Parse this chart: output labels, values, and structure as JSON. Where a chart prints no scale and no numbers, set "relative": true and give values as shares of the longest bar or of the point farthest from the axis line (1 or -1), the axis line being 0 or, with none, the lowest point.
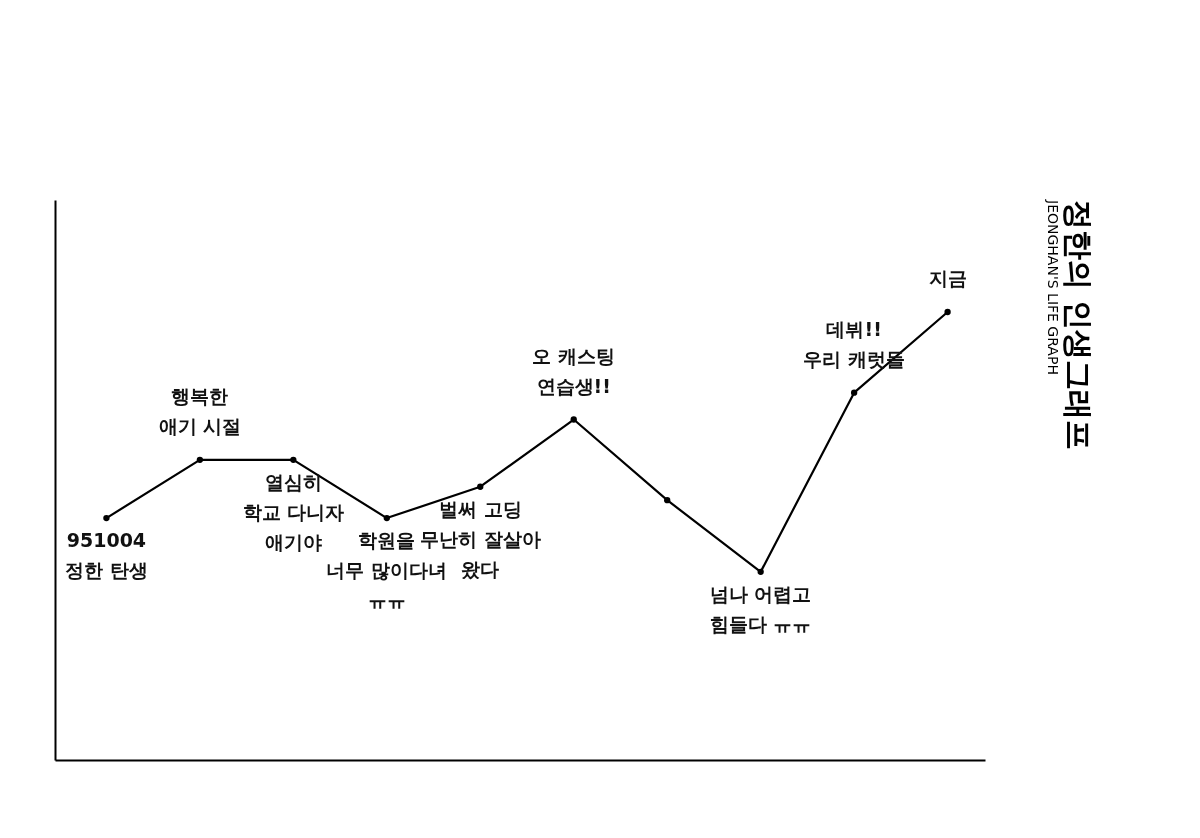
{
  "chart_data": {
    "type": "line",
    "title": "정한의 인생그래프",
    "subtitle": "JEONGHAN'S LIFE GRAPH",
    "relative": true,
    "categories": [
      null,
      null,
      null,
      null,
      null,
      null,
      null,
      null,
      null,
      null
    ],
    "series": [
      {
        "color": "#000000",
        "values": [
          0.54,
          0.67,
          0.67,
          0.54,
          0.61,
          0.76,
          0.58,
          0.42,
          0.82,
          1.0
        ]
      }
    ],
    "marker": "circle",
    "line_style": "solid",
    "grid": false,
    "annotations": [
      "951004\n정한 탄생",
      "행복한\n애기 시절",
      "열심히\n학교 다니자\n애기야",
      "학원을\n너무 많이다녀\nㅠㅠ",
      "벌써 고딩\n무난히 잘살아\n왔다",
      "오 캐스팅\n연습생!!",
      "넘나 어렵고\n힘들다 ㅠㅠ",
      "데뷔!!\n우리 캐럿들",
      "지금"
    ]
  }
}
